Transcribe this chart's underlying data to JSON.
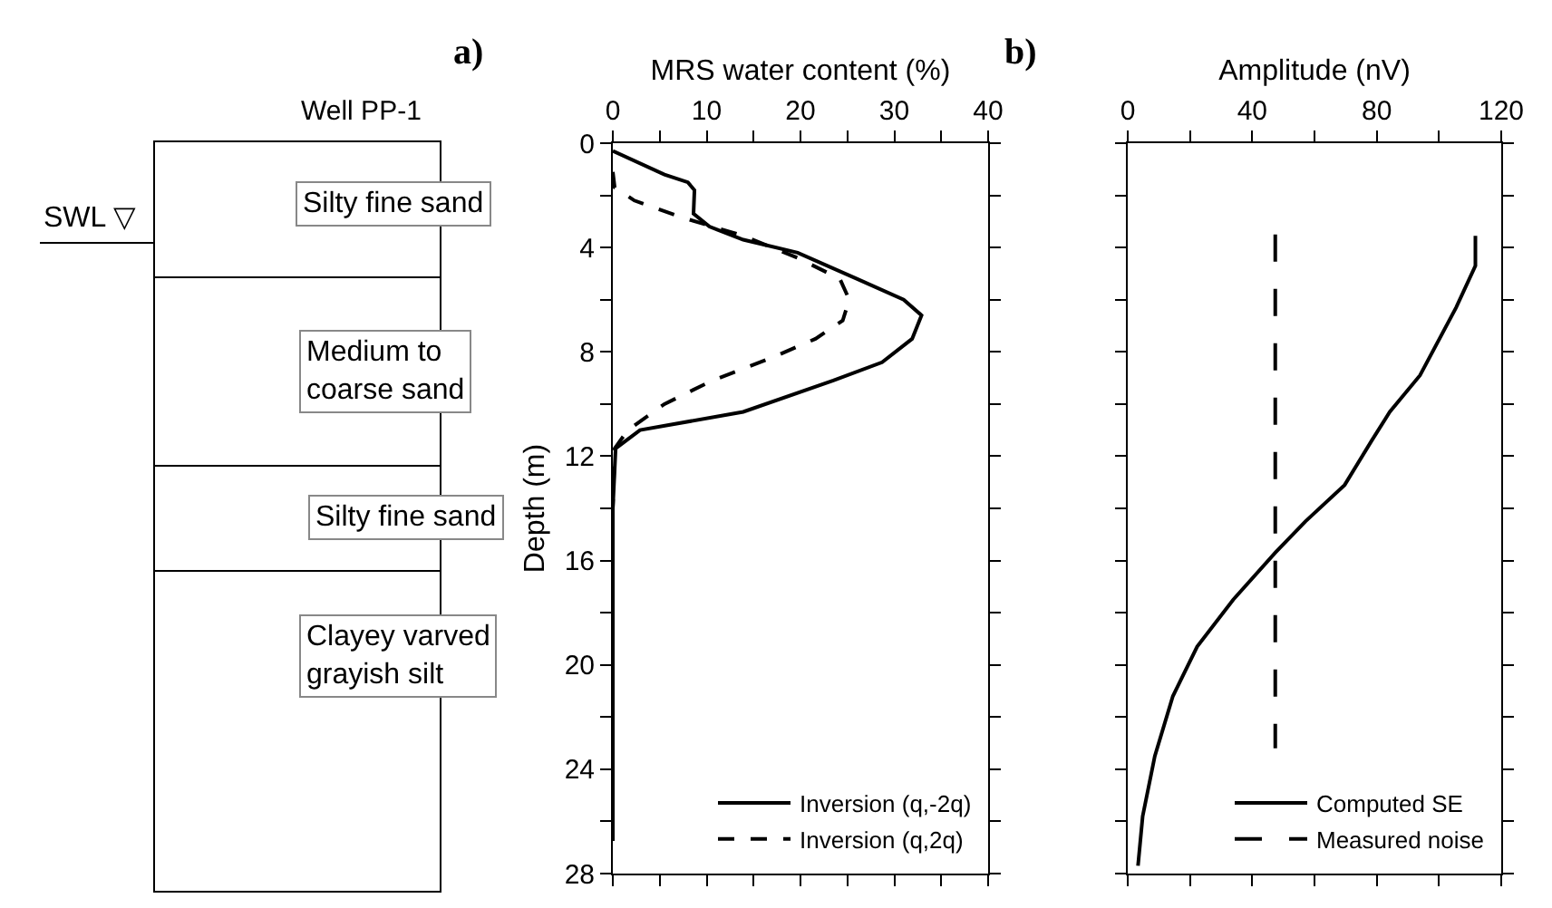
{
  "chart_data": [
    {
      "type": "other",
      "title": "Well PP-1",
      "annotations": [
        "SWL ▽",
        "Silty fine sand",
        "Medium to coarse sand",
        "Silty fine sand",
        "Clayey varved grayish silt"
      ]
    },
    {
      "type": "line",
      "xlabel": "MRS water content (%)",
      "ylabel": "Depth (m)",
      "annotations": [
        "a)"
      ],
      "xlim": [
        0,
        40
      ],
      "xticks": [
        0,
        {
          "value": 5,
          "label": null
        },
        10,
        {
          "value": 15,
          "label": null
        },
        20,
        {
          "value": 25,
          "label": null
        },
        30,
        {
          "value": 35,
          "label": null
        },
        40
      ],
      "ylim": [
        28,
        0
      ],
      "yticks": [
        0,
        {
          "value": 2,
          "label": null
        },
        4,
        {
          "value": 6,
          "label": null
        },
        8,
        {
          "value": 10,
          "label": null
        },
        12,
        {
          "value": 14,
          "label": null
        },
        16,
        {
          "value": 18,
          "label": null
        },
        20,
        {
          "value": 22,
          "label": null
        },
        24,
        {
          "value": 26,
          "label": null
        },
        28
      ],
      "legend": "bottom right",
      "series": [
        {
          "name": "Inversion (q,-2q)",
          "color": "#000000",
          "line_style": "solid",
          "x": [
            0,
            5.5,
            8,
            8.7,
            8.6,
            10.3,
            13.9,
            19.7,
            26,
            31,
            32.9,
            31.9,
            28.7,
            23.5,
            13.9,
            2.9,
            0.3,
            0,
            0
          ],
          "values": [
            0.3,
            1.2,
            1.5,
            1.8,
            2.7,
            3.2,
            3.7,
            4.2,
            5.2,
            6.0,
            6.6,
            7.5,
            8.4,
            9.1,
            10.3,
            11.0,
            11.7,
            14,
            26.75
          ]
        },
        {
          "name": "Inversion (q,2q)",
          "color": "#000000",
          "line_style": "dashed",
          "x": [
            0,
            0.2,
            2.3,
            7.4,
            13.9,
            19.7,
            24.2,
            25.2,
            24.5,
            21.6,
            17.1,
            10.6,
            5.5,
            1.6,
            0.2,
            0,
            0
          ],
          "values": [
            1.1,
            1.7,
            2.2,
            2.85,
            3.55,
            4.4,
            5.2,
            6.0,
            6.8,
            7.5,
            8.2,
            9.1,
            10.0,
            11.0,
            11.7,
            14,
            26.75
          ]
        }
      ]
    },
    {
      "type": "line",
      "xlabel": "Amplitude (nV)",
      "annotations": [
        "b)"
      ],
      "tick_labels": "x",
      "xlim": [
        0,
        120
      ],
      "xticks": [
        0,
        {
          "value": 20,
          "label": null
        },
        40,
        {
          "value": 60,
          "label": null
        },
        80,
        {
          "value": 100,
          "label": null
        },
        120
      ],
      "ylim": [
        28,
        0
      ],
      "yticks": [
        {
          "value": 0,
          "label": null
        },
        {
          "value": 2,
          "label": null
        },
        {
          "value": 4,
          "label": null
        },
        {
          "value": 6,
          "label": null
        },
        {
          "value": 8,
          "label": null
        },
        {
          "value": 10,
          "label": null
        },
        {
          "value": 12,
          "label": null
        },
        {
          "value": 14,
          "label": null
        },
        {
          "value": 16,
          "label": null
        },
        {
          "value": 18,
          "label": null
        },
        {
          "value": 20,
          "label": null
        },
        {
          "value": 22,
          "label": null
        },
        {
          "value": 24,
          "label": null
        },
        {
          "value": 26,
          "label": null
        },
        {
          "value": 28,
          "label": null
        }
      ],
      "legend": "bottom right",
      "series": [
        {
          "name": "Computed SE",
          "color": "#000000",
          "line_style": "solid",
          "x": [
            111.7,
            111.7,
            105.5,
            93.9,
            84.2,
            78.4,
            69.7,
            57.1,
            47.4,
            33.9,
            22.3,
            14.5,
            8.7,
            4.8,
            3.3
          ],
          "values": [
            3.55,
            4.7,
            6.3,
            8.9,
            10.3,
            11.4,
            13.1,
            14.5,
            15.7,
            17.5,
            19.3,
            21.2,
            23.5,
            25.8,
            27.7
          ]
        },
        {
          "name": "Measured noise",
          "color": "#000000",
          "line_style": "longdash",
          "x": [
            47.4,
            47.4
          ],
          "values": [
            3.5,
            23.2
          ]
        }
      ]
    }
  ]
}
